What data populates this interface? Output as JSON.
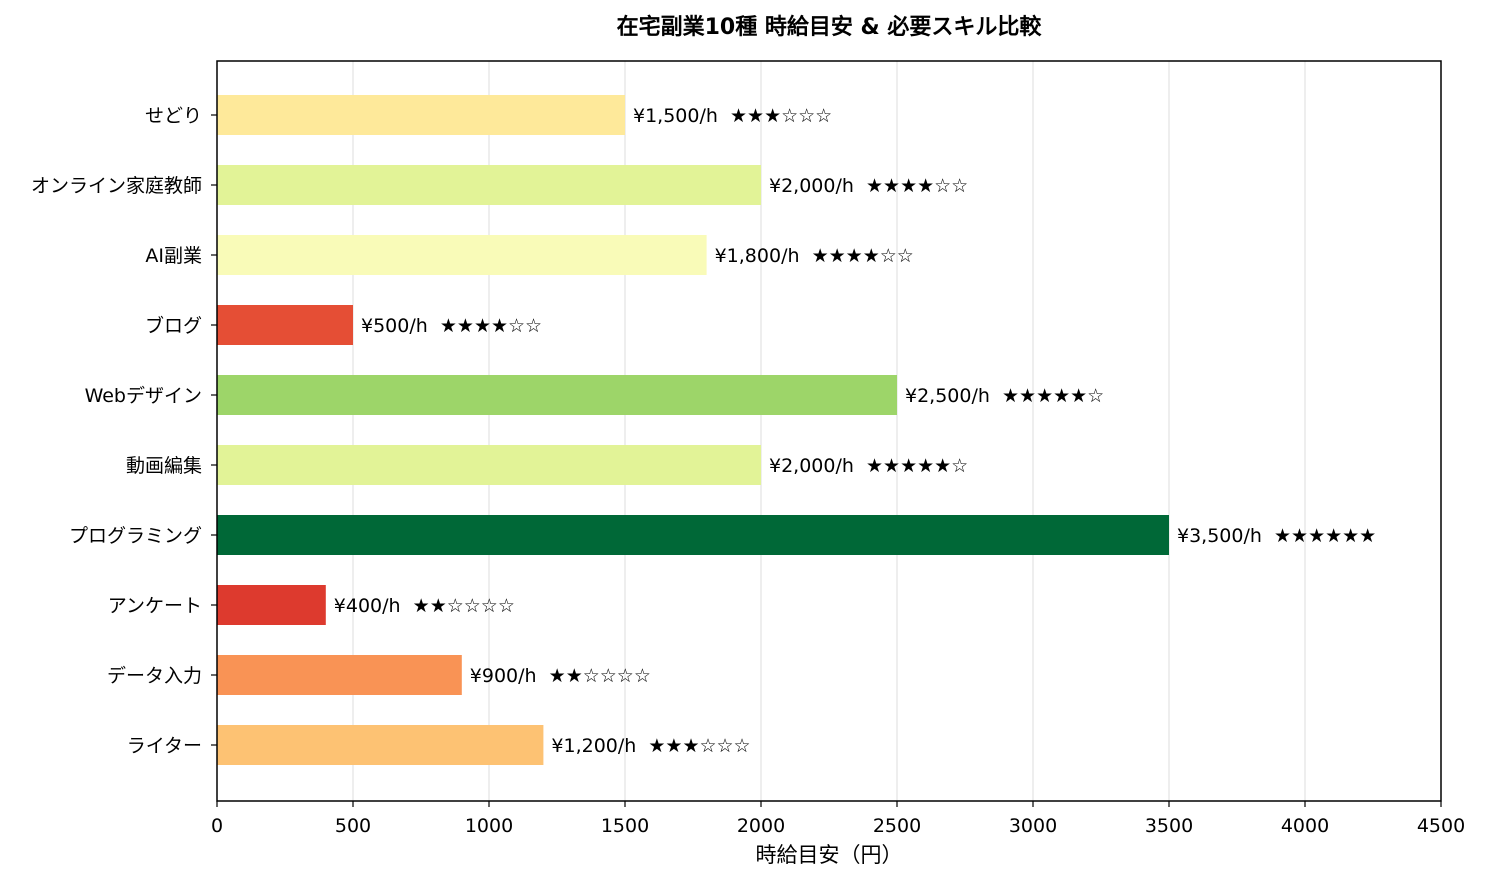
{
  "chart_data": {
    "type": "bar",
    "orientation": "horizontal",
    "title": "在宅副業10種 時給目安 & 必要スキル比較",
    "xlabel": "時給目安（円）",
    "ylabel": "",
    "xlim": [
      0,
      4500
    ],
    "xticks": [
      0,
      500,
      1000,
      1500,
      2000,
      2500,
      3000,
      3500,
      4000,
      4500
    ],
    "grid": "vertical",
    "categories": [
      "ライター",
      "データ入力",
      "アンケート",
      "プログラミング",
      "動画編集",
      "Webデザイン",
      "ブログ",
      "AI副業",
      "オンライン家庭教師",
      "せどり"
    ],
    "values": [
      1200,
      900,
      400,
      3500,
      2000,
      2500,
      500,
      1800,
      2000,
      1500
    ],
    "skill_stars": [
      3,
      2,
      2,
      6,
      5,
      5,
      4,
      4,
      4,
      3
    ],
    "labels": [
      "¥1,200/h  ★★★☆☆☆",
      "¥900/h  ★★☆☆☆☆",
      "¥400/h  ★★☆☆☆☆",
      "¥3,500/h  ★★★★★★",
      "¥2,000/h  ★★★★★☆",
      "¥2,500/h  ★★★★★☆",
      "¥500/h  ★★★★☆☆",
      "¥1,800/h  ★★★★☆☆",
      "¥2,000/h  ★★★★☆☆",
      "¥1,500/h  ★★★☆☆☆"
    ],
    "colors": [
      "#fdc273",
      "#f99355",
      "#dd3a2e",
      "#006837",
      "#e2f397",
      "#9dd569",
      "#e54e35",
      "#f9fbb8",
      "#e2f397",
      "#fee99a"
    ]
  }
}
